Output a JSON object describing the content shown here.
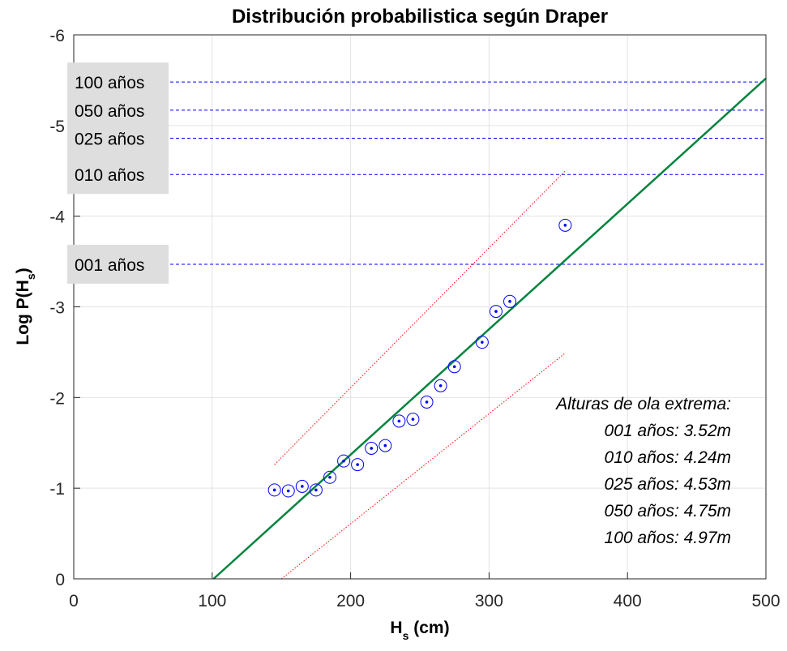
{
  "chart_data": {
    "type": "scatter",
    "title": "Distribución probabilistica según Draper",
    "xlabel": {
      "main": "H",
      "sub": "s",
      "rest": " (cm)"
    },
    "ylabel": {
      "main": "Log P(H",
      "sub": "s",
      "rest": ")"
    },
    "xlim": [
      0,
      500
    ],
    "ylim": [
      0,
      -6
    ],
    "y_axis_reversed": true,
    "grid": true,
    "xticks": [
      0,
      100,
      200,
      300,
      400,
      500
    ],
    "yticks": [
      0,
      -1,
      -2,
      -3,
      -4,
      -5,
      -6
    ],
    "xtick_labels": [
      "0",
      "100",
      "200",
      "300",
      "400",
      "500"
    ],
    "ytick_labels": [
      "0",
      "-1",
      "-2",
      "-3",
      "-4",
      "-5",
      "-6"
    ],
    "points": {
      "x": [
        145,
        155,
        165,
        175,
        185,
        195,
        205,
        215,
        225,
        235,
        245,
        255,
        265,
        275,
        295,
        305,
        315,
        355
      ],
      "y": [
        -0.98,
        -0.97,
        -1.02,
        -0.98,
        -1.12,
        -1.3,
        -1.26,
        -1.44,
        -1.47,
        -1.74,
        -1.76,
        -1.95,
        -2.13,
        -2.34,
        -2.61,
        -2.95,
        -3.06,
        -3.9
      ],
      "marker_color": "#0000FF"
    },
    "fit_line": {
      "x": [
        101,
        500
      ],
      "y": [
        0,
        -5.52
      ],
      "color": "#00843D"
    },
    "confidence_bands": [
      {
        "x": [
          145,
          355
        ],
        "y": [
          -1.26,
          -4.5
        ],
        "color": "#FF0000"
      },
      {
        "x": [
          150,
          355
        ],
        "y": [
          0,
          -2.49
        ],
        "color": "#FF0000"
      }
    ],
    "return_levels": [
      {
        "label": "001 años",
        "y": -3.47
      },
      {
        "label": "010 años",
        "y": -4.46
      },
      {
        "label": "025 años",
        "y": -4.86
      },
      {
        "label": "050 años",
        "y": -5.17
      },
      {
        "label": "100 años",
        "y": -5.48
      }
    ],
    "return_line_color": "#0000FF",
    "label_box_color": "#DEDEDE",
    "annotation": {
      "heading": "Alturas de ola extrema:",
      "lines": [
        "001 años: 3.52m",
        "010 años: 4.24m",
        "025 años: 4.53m",
        "050 años: 4.75m",
        "100 años: 4.97m"
      ]
    }
  }
}
